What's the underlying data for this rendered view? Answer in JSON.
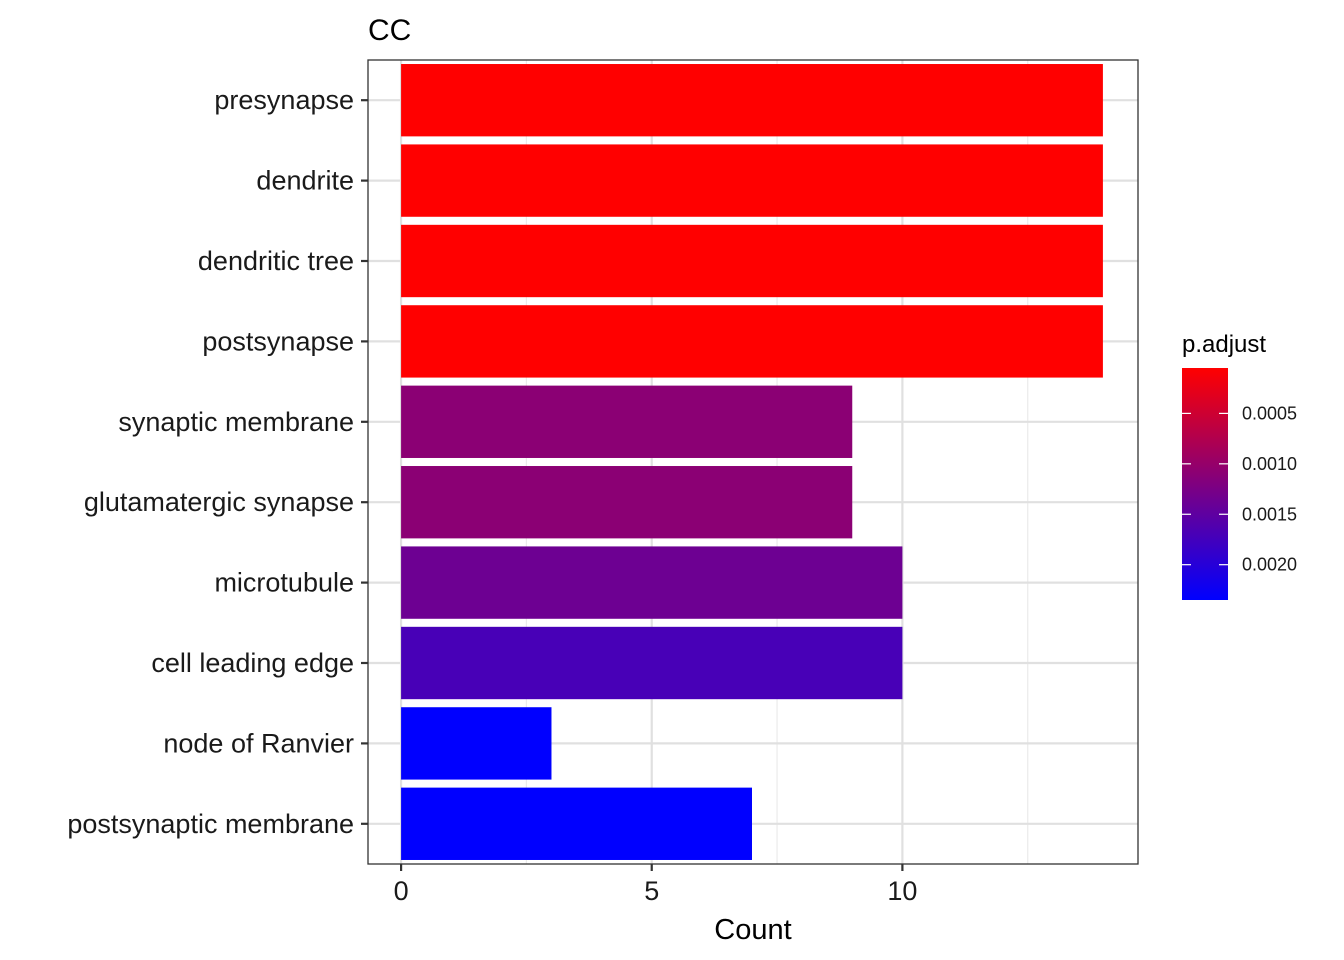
{
  "chart_data": {
    "type": "bar",
    "orientation": "horizontal",
    "title": "CC",
    "xlabel": "Count",
    "ylabel": "",
    "xlim": [
      -0.66,
      14.7
    ],
    "xticks": [
      0,
      5,
      10
    ],
    "grid": true,
    "categories": [
      "presynapse",
      "dendrite",
      "dendritic tree",
      "postsynapse",
      "synaptic membrane",
      "glutamatergic synapse",
      "microtubule",
      "cell leading edge",
      "node of Ranvier",
      "postsynaptic membrane"
    ],
    "values": [
      14,
      14,
      14,
      14,
      9,
      9,
      10,
      10,
      3,
      7
    ],
    "p_adjust": [
      5e-05,
      5e-05,
      5e-05,
      5e-05,
      0.0011,
      0.0011,
      0.00137,
      0.0017,
      0.00235,
      0.00235
    ],
    "legend": {
      "title": "p.adjust",
      "position": "right",
      "color_low": "#FF0000",
      "color_high": "#0000FF",
      "range": [
        5e-05,
        0.00235
      ],
      "ticks": [
        0.0005,
        0.001,
        0.0015,
        0.002
      ],
      "tick_labels": [
        "0.0005",
        "0.0010",
        "0.0015",
        "0.0020"
      ]
    }
  }
}
